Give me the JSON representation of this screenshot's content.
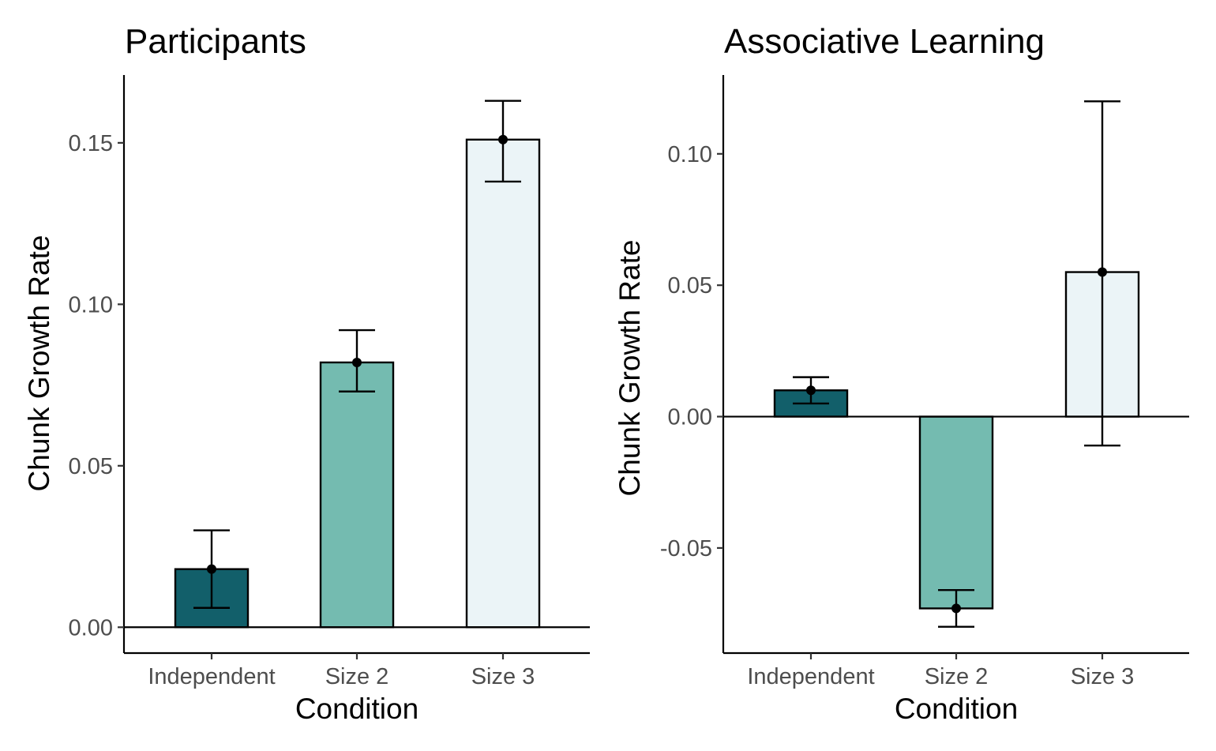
{
  "chart_data": [
    {
      "type": "bar",
      "title": "Participants",
      "xlabel": "Condition",
      "ylabel": "Chunk Growth Rate",
      "categories": [
        "Independent",
        "Size 2",
        "Size 3"
      ],
      "values": [
        0.018,
        0.082,
        0.151
      ],
      "error_low": [
        0.006,
        0.073,
        0.138
      ],
      "error_high": [
        0.03,
        0.092,
        0.163
      ],
      "colors": [
        "#125f6a",
        "#74bbb0",
        "#ebf4f7"
      ],
      "ylim": [
        -0.008,
        0.171
      ],
      "yticks": [
        0.0,
        0.05,
        0.1,
        0.15
      ],
      "ytick_labels": [
        "0.00",
        "0.05",
        "0.10",
        "0.15"
      ],
      "zero_line": true,
      "grid": false,
      "legend": "none"
    },
    {
      "type": "bar",
      "title": "Associative Learning",
      "xlabel": "Condition",
      "ylabel": "Chunk Growth Rate",
      "categories": [
        "Independent",
        "Size 2",
        "Size 3"
      ],
      "values": [
        0.01,
        -0.073,
        0.055
      ],
      "error_low": [
        0.005,
        -0.08,
        -0.011
      ],
      "error_high": [
        0.015,
        -0.066,
        0.12
      ],
      "colors": [
        "#125f6a",
        "#74bbb0",
        "#ebf4f7"
      ],
      "ylim": [
        -0.09,
        0.13
      ],
      "yticks": [
        -0.05,
        0.0,
        0.05,
        0.1
      ],
      "ytick_labels": [
        "-0.05",
        "0.00",
        "0.05",
        "0.10"
      ],
      "zero_line": true,
      "grid": false,
      "legend": "none"
    }
  ]
}
